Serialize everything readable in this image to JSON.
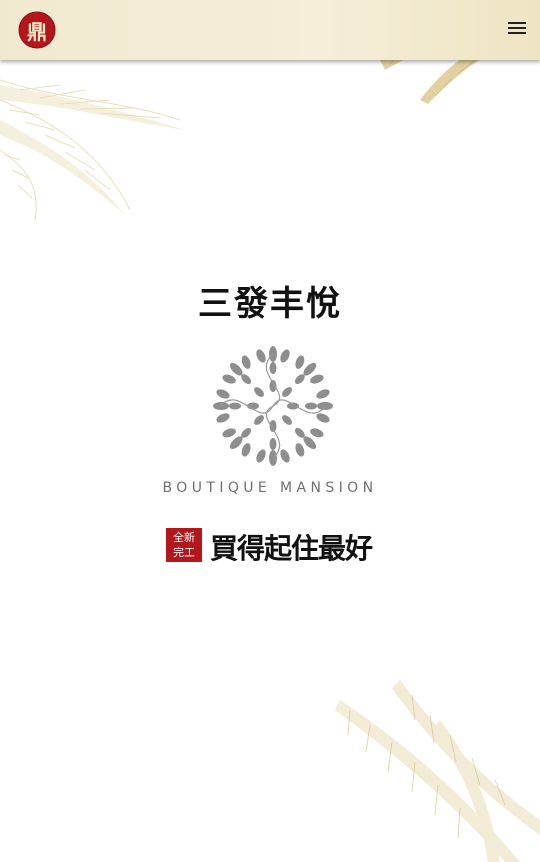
{
  "header": {
    "logo_glyph": "鼎",
    "logo_color": "#b3171c",
    "menu_icon": "hamburger-menu-icon"
  },
  "hero": {
    "title": "三發丰悅",
    "subtitle": "BOUTIQUE MANSION",
    "badge_line1": "全新",
    "badge_line2": "完工",
    "slogan": "買得起住最好"
  },
  "colors": {
    "header_bg": "#f1e9cf",
    "gold_leaf": "#d9c48f",
    "badge_red": "#b3171c",
    "emblem_gray": "#8e8e8e"
  }
}
